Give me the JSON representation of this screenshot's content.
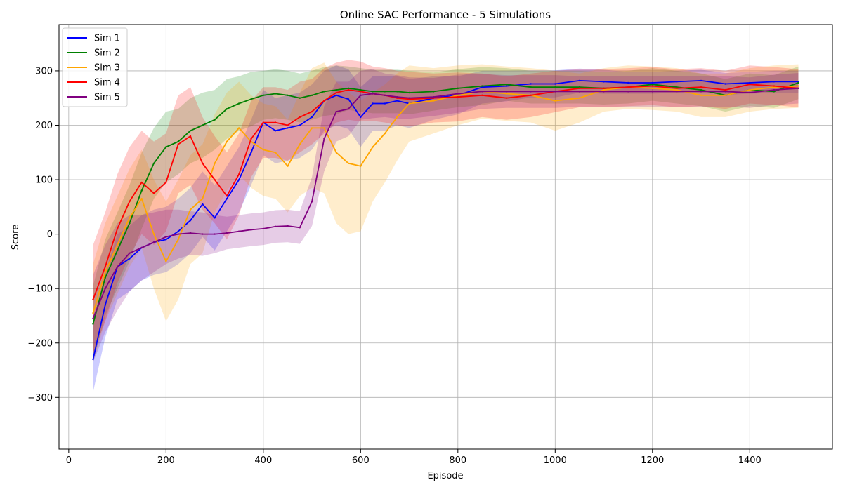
{
  "chart_data": {
    "type": "line",
    "title": "Online SAC Performance - 5 Simulations",
    "xlabel": "Episode",
    "ylabel": "Score",
    "xlim": [
      -20,
      1570
    ],
    "ylim": [
      -395,
      385
    ],
    "x_ticks": [
      0,
      200,
      400,
      600,
      800,
      1000,
      1200,
      1400
    ],
    "y_ticks": [
      -300,
      -200,
      -100,
      0,
      100,
      200,
      300
    ],
    "grid": true,
    "legend": "top-left",
    "shaded_band": true,
    "x": [
      50,
      75,
      100,
      125,
      150,
      175,
      200,
      225,
      250,
      275,
      300,
      325,
      350,
      375,
      400,
      425,
      450,
      475,
      500,
      525,
      550,
      575,
      600,
      625,
      650,
      675,
      700,
      750,
      800,
      850,
      900,
      950,
      1000,
      1050,
      1100,
      1150,
      1200,
      1250,
      1300,
      1350,
      1400,
      1450,
      1500
    ],
    "series": [
      {
        "name": "Sim 1",
        "color": "#0000ff",
        "values": [
          -230,
          -130,
          -60,
          -45,
          -25,
          -15,
          -10,
          5,
          25,
          55,
          30,
          65,
          100,
          150,
          205,
          190,
          195,
          200,
          215,
          245,
          255,
          248,
          215,
          240,
          240,
          245,
          240,
          250,
          255,
          270,
          272,
          276,
          276,
          282,
          280,
          278,
          278,
          280,
          282,
          276,
          278,
          280,
          280
        ],
        "band": [
          60,
          60,
          60,
          60,
          60,
          60,
          60,
          60,
          60,
          60,
          60,
          60,
          60,
          60,
          60,
          60,
          60,
          60,
          60,
          55,
          55,
          55,
          55,
          50,
          50,
          45,
          45,
          40,
          35,
          30,
          28,
          25,
          25,
          22,
          22,
          20,
          20,
          20,
          20,
          20,
          20,
          20,
          20
        ]
      },
      {
        "name": "Sim 2",
        "color": "#008000",
        "values": [
          -165,
          -80,
          -30,
          20,
          80,
          130,
          160,
          170,
          190,
          200,
          210,
          230,
          240,
          248,
          255,
          258,
          255,
          250,
          255,
          262,
          265,
          268,
          265,
          262,
          262,
          262,
          260,
          262,
          268,
          272,
          275,
          270,
          270,
          270,
          268,
          270,
          275,
          270,
          265,
          255,
          265,
          262,
          278
        ],
        "band": [
          70,
          70,
          70,
          70,
          70,
          65,
          65,
          60,
          60,
          60,
          55,
          55,
          50,
          50,
          45,
          45,
          45,
          45,
          45,
          45,
          45,
          40,
          40,
          40,
          40,
          40,
          40,
          35,
          35,
          35,
          30,
          30,
          30,
          30,
          30,
          30,
          30,
          30,
          30,
          30,
          30,
          30,
          30
        ]
      },
      {
        "name": "Sim 3",
        "color": "#ffa500",
        "values": [
          -145,
          -70,
          -20,
          30,
          65,
          0,
          -50,
          -10,
          45,
          65,
          130,
          170,
          195,
          170,
          155,
          150,
          125,
          165,
          195,
          195,
          150,
          130,
          125,
          160,
          185,
          215,
          240,
          245,
          255,
          262,
          258,
          255,
          245,
          250,
          265,
          270,
          268,
          265,
          255,
          255,
          265,
          270,
          272
        ],
        "band": [
          90,
          90,
          90,
          90,
          90,
          100,
          110,
          110,
          100,
          100,
          90,
          90,
          85,
          85,
          85,
          85,
          85,
          95,
          110,
          120,
          130,
          130,
          120,
          100,
          90,
          80,
          70,
          60,
          55,
          50,
          50,
          50,
          55,
          45,
          40,
          40,
          40,
          40,
          40,
          40,
          40,
          40,
          40
        ]
      },
      {
        "name": "Sim 4",
        "color": "#ff0000",
        "values": [
          -120,
          -60,
          10,
          60,
          95,
          75,
          95,
          165,
          180,
          130,
          100,
          70,
          110,
          175,
          205,
          205,
          200,
          215,
          225,
          245,
          260,
          265,
          262,
          258,
          255,
          250,
          248,
          250,
          252,
          255,
          250,
          255,
          262,
          268,
          268,
          270,
          272,
          268,
          270,
          265,
          275,
          272,
          268
        ],
        "band": [
          100,
          100,
          100,
          100,
          95,
          95,
          90,
          90,
          90,
          85,
          80,
          80,
          75,
          70,
          65,
          65,
          65,
          65,
          60,
          60,
          55,
          55,
          55,
          50,
          50,
          50,
          50,
          45,
          45,
          40,
          40,
          40,
          38,
          35,
          35,
          35,
          35,
          35,
          35,
          35,
          35,
          35,
          35
        ]
      },
      {
        "name": "Sim 5",
        "color": "#800080",
        "values": [
          -155,
          -100,
          -60,
          -35,
          -25,
          -15,
          -5,
          0,
          2,
          0,
          0,
          2,
          5,
          8,
          10,
          14,
          15,
          12,
          60,
          175,
          225,
          230,
          255,
          258,
          255,
          252,
          250,
          252,
          258,
          262,
          262,
          262,
          262,
          262,
          262,
          262,
          262,
          262,
          262,
          262,
          260,
          265,
          268
        ],
        "band": [
          80,
          80,
          80,
          70,
          60,
          55,
          50,
          45,
          40,
          40,
          35,
          30,
          30,
          30,
          30,
          30,
          30,
          30,
          45,
          60,
          55,
          50,
          45,
          45,
          40,
          40,
          38,
          35,
          35,
          32,
          30,
          30,
          30,
          28,
          28,
          28,
          28,
          28,
          28,
          28,
          28,
          28,
          28
        ]
      }
    ]
  }
}
